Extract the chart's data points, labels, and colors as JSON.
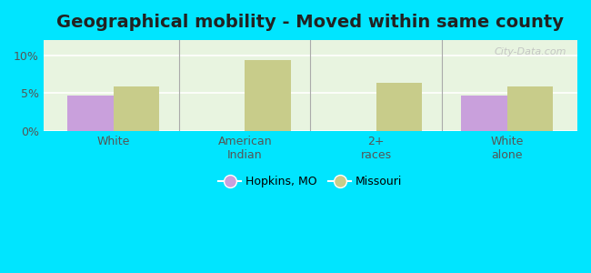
{
  "title": "Geographical mobility - Moved within same county",
  "categories": [
    "White",
    "American\nIndian",
    "2+\nraces",
    "White\nalone"
  ],
  "hopkins_values": [
    4.7,
    0,
    0,
    4.7
  ],
  "missouri_values": [
    5.9,
    9.3,
    6.4,
    5.9
  ],
  "hopkins_color": "#c9a0dc",
  "missouri_color": "#c8cc8a",
  "background_color": "#00e5ff",
  "plot_bg_color": "#e8f4e0",
  "ylim": [
    0,
    12
  ],
  "yticks": [
    0,
    5,
    10
  ],
  "ytick_labels": [
    "0%",
    "5%",
    "10%"
  ],
  "bar_width": 0.35,
  "title_fontsize": 14,
  "legend_labels": [
    "Hopkins, MO",
    "Missouri"
  ],
  "watermark": "City-Data.com"
}
